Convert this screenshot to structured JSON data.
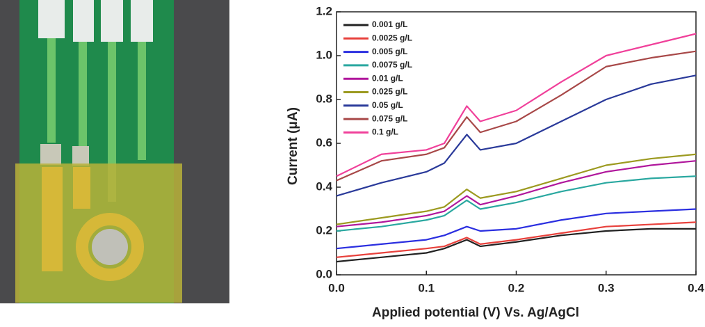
{
  "chart_data": {
    "type": "line",
    "x_label": "Applied potential (V) Vs. Ag/AgCl",
    "y_label": "Current (μA)",
    "x": [
      0,
      0.05,
      0.1,
      0.12,
      0.145,
      0.16,
      0.2,
      0.25,
      0.3,
      0.35,
      0.4
    ],
    "series": [
      {
        "name": "0.001 g/L",
        "color": "#222222",
        "values": [
          0.06,
          0.08,
          0.1,
          0.12,
          0.16,
          0.13,
          0.15,
          0.18,
          0.2,
          0.21,
          0.21
        ]
      },
      {
        "name": "0.0025 g/L",
        "color": "#e8413c",
        "values": [
          0.08,
          0.1,
          0.12,
          0.13,
          0.17,
          0.14,
          0.16,
          0.19,
          0.22,
          0.23,
          0.24
        ]
      },
      {
        "name": "0.005 g/L",
        "color": "#2b2fe0",
        "values": [
          0.12,
          0.14,
          0.16,
          0.18,
          0.22,
          0.2,
          0.21,
          0.25,
          0.28,
          0.29,
          0.3
        ]
      },
      {
        "name": "0.0075 g/L",
        "color": "#2aa8a0",
        "values": [
          0.2,
          0.22,
          0.25,
          0.27,
          0.34,
          0.3,
          0.33,
          0.38,
          0.42,
          0.44,
          0.45
        ]
      },
      {
        "name": "0.01 g/L",
        "color": "#b0179c",
        "values": [
          0.22,
          0.24,
          0.27,
          0.29,
          0.36,
          0.32,
          0.36,
          0.42,
          0.47,
          0.5,
          0.52
        ]
      },
      {
        "name": "0.025 g/L",
        "color": "#9c9a20",
        "values": [
          0.23,
          0.26,
          0.29,
          0.31,
          0.39,
          0.35,
          0.38,
          0.44,
          0.5,
          0.53,
          0.55
        ]
      },
      {
        "name": "0.05 g/L",
        "color": "#2a3a9a",
        "values": [
          0.36,
          0.42,
          0.47,
          0.51,
          0.64,
          0.57,
          0.6,
          0.7,
          0.8,
          0.87,
          0.91
        ]
      },
      {
        "name": "0.075 g/L",
        "color": "#a84848",
        "values": [
          0.43,
          0.52,
          0.55,
          0.58,
          0.72,
          0.65,
          0.7,
          0.82,
          0.95,
          0.99,
          1.02
        ]
      },
      {
        "name": "0.1 g/L",
        "color": "#f0409a",
        "values": [
          0.45,
          0.55,
          0.57,
          0.6,
          0.77,
          0.7,
          0.75,
          0.88,
          1.0,
          1.05,
          1.1
        ]
      }
    ],
    "xlim": [
      0,
      0.4
    ],
    "ylim": [
      0,
      1.2
    ],
    "xticks": [
      {
        "value": 0,
        "label": "0.0"
      },
      0.1,
      0.2,
      0.3,
      0.4
    ],
    "yticks": [
      {
        "value": 0,
        "label": "0.0"
      },
      0.2,
      0.4,
      0.6,
      0.8,
      {
        "value": 1,
        "label": "1.0"
      },
      1.2
    ],
    "legend": "upper-left"
  }
}
